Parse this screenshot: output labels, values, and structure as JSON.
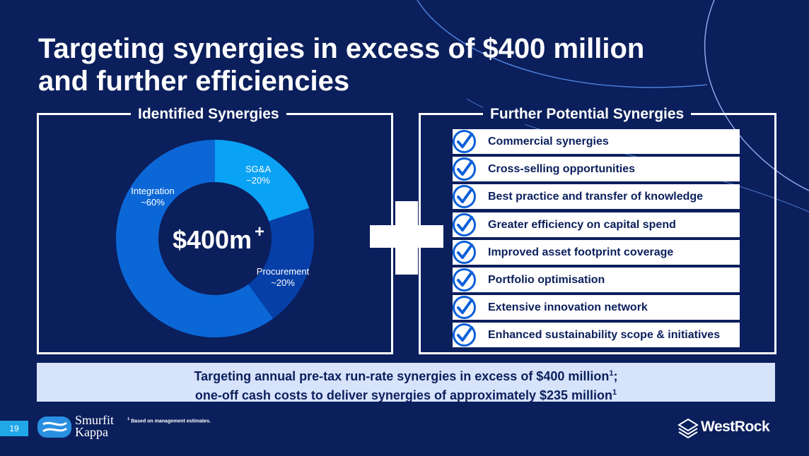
{
  "slide": {
    "title_line1": "Targeting synergies in excess of $400 million",
    "title_line2": "and further efficiencies",
    "page_number": "19"
  },
  "left_panel": {
    "title": "Identified Synergies",
    "center_value": "$400m",
    "center_sup": "+"
  },
  "chart_data": {
    "type": "pie",
    "title": "Identified Synergies",
    "total_label": "$400m+",
    "slices": [
      {
        "name": "SG&A",
        "value": 20,
        "label": "~20%",
        "color": "#0aa2f5"
      },
      {
        "name": "Procurement",
        "value": 20,
        "label": "~20%",
        "color": "#063fa8"
      },
      {
        "name": "Integration",
        "value": 60,
        "label": "~60%",
        "color": "#0b67d6"
      }
    ]
  },
  "right_panel": {
    "title": "Further Potential Synergies",
    "items": [
      "Commercial synergies",
      "Cross-selling opportunities",
      "Best practice and transfer of knowledge",
      "Greater efficiency on capital spend",
      "Improved asset footprint coverage",
      "Portfolio optimisation",
      "Extensive innovation network",
      "Enhanced sustainability scope & initiatives"
    ]
  },
  "banner": {
    "line1": "Targeting annual pre-tax run-rate synergies in excess of $400 million",
    "line2": "one-off cash costs to deliver synergies of approximately $235 million",
    "sup": "1",
    "line1_end": ";"
  },
  "footer": {
    "footnote_sup": "1",
    "footnote": "Based on management estimates.",
    "logo_left_line1": "Smurfit",
    "logo_left_line2": "Kappa",
    "logo_right": "WestRock"
  },
  "colors": {
    "background": "#0b1f5c",
    "check": "#0b5fd9",
    "banner": "#d7e3fb",
    "page_badge": "#20a7e8"
  }
}
